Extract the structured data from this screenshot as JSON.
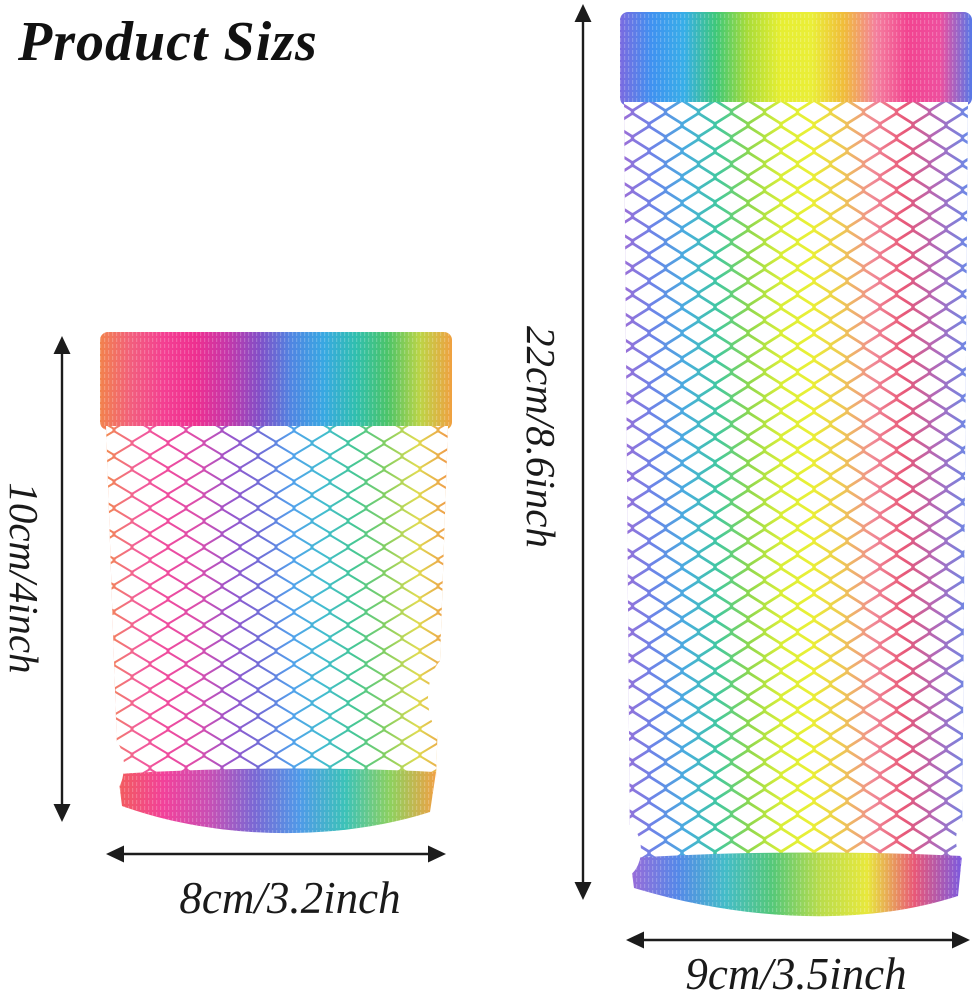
{
  "title": "Product Sizs",
  "page": {
    "background": "#ffffff",
    "arrow_color": "#1c1c1c",
    "text_color": "#1a1a1a"
  },
  "small_glove": {
    "description": "small rainbow fishnet fingerless glove",
    "height_label": "10cm/4inch",
    "width_label": "8cm/3.2inch",
    "cuff_colors": [
      "#f2824c",
      "#f25d7e",
      "#f43f92",
      "#ee2f90",
      "#c437aa",
      "#8050c8",
      "#4f86e2",
      "#38a8e2",
      "#30bfae",
      "#4cc468",
      "#bcd446",
      "#f0a040"
    ],
    "body_colors": [
      "#f28a52",
      "#f2609a",
      "#ef4b9e",
      "#d94fae",
      "#9a55cc",
      "#6f6fd8",
      "#53a2ec",
      "#43bdd0",
      "#45c795",
      "#84cf62",
      "#dedc52",
      "#f09a48"
    ],
    "band_colors": [
      "#f25c5c",
      "#f2419a",
      "#c84fb4",
      "#7a68d4",
      "#4f9ae8",
      "#3cc2b8",
      "#8ed05e",
      "#f0a044"
    ]
  },
  "large_glove": {
    "description": "large rainbow fishnet fingerless glove",
    "height_label": "22cm/8.6inch",
    "width_label": "9cm/3.5inch",
    "cuff_colors": [
      "#7a6ae0",
      "#3f92f0",
      "#38aee8",
      "#3ec878",
      "#aadc38",
      "#e6ee32",
      "#eaee38",
      "#f0bc3a",
      "#f4809e",
      "#f24390",
      "#ee4f9e",
      "#5578e8"
    ],
    "body_colors": [
      "#9a6fd8",
      "#6a86e8",
      "#48aede",
      "#42c8a0",
      "#8ed84e",
      "#d8ee38",
      "#eaf036",
      "#eec854",
      "#f08896",
      "#e85878",
      "#b06aba",
      "#6a8ae8"
    ],
    "band_colors": [
      "#9a6ad8",
      "#5588e8",
      "#44bcc8",
      "#55c878",
      "#b8dc4c",
      "#e8e83c",
      "#e85878",
      "#7a5ae0"
    ]
  }
}
